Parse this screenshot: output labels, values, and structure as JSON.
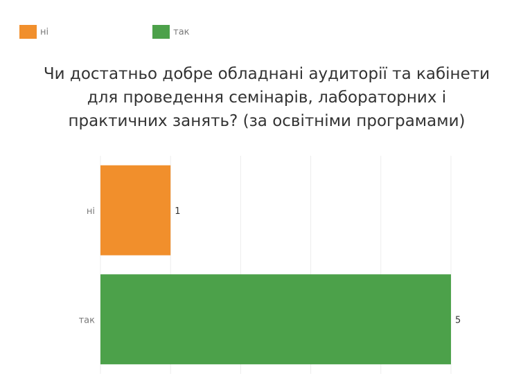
{
  "legend": [
    {
      "label": "ні",
      "color": "#F18F2C"
    },
    {
      "label": "так",
      "color": "#4CA14A"
    }
  ],
  "title_lines": [
    "Чи достатньо добре обладнані аудиторії та кабінети",
    "для проведення семінарів, лабораторних і",
    "практичних занять? (за освітніми програмами)"
  ],
  "chart_data": {
    "type": "bar",
    "orientation": "horizontal",
    "title": "Чи достатньо добре обладнані аудиторії та кабінети для проведення семінарів, лабораторних і практичних занять? (за освітніми програмами)",
    "categories": [
      "ні",
      "так"
    ],
    "values": [
      1,
      5
    ],
    "colors": [
      "#F18F2C",
      "#4CA14A"
    ],
    "data_labels": [
      "1",
      "5"
    ],
    "xlim": [
      0,
      5
    ],
    "grid": true,
    "legend_position": "top-left"
  }
}
